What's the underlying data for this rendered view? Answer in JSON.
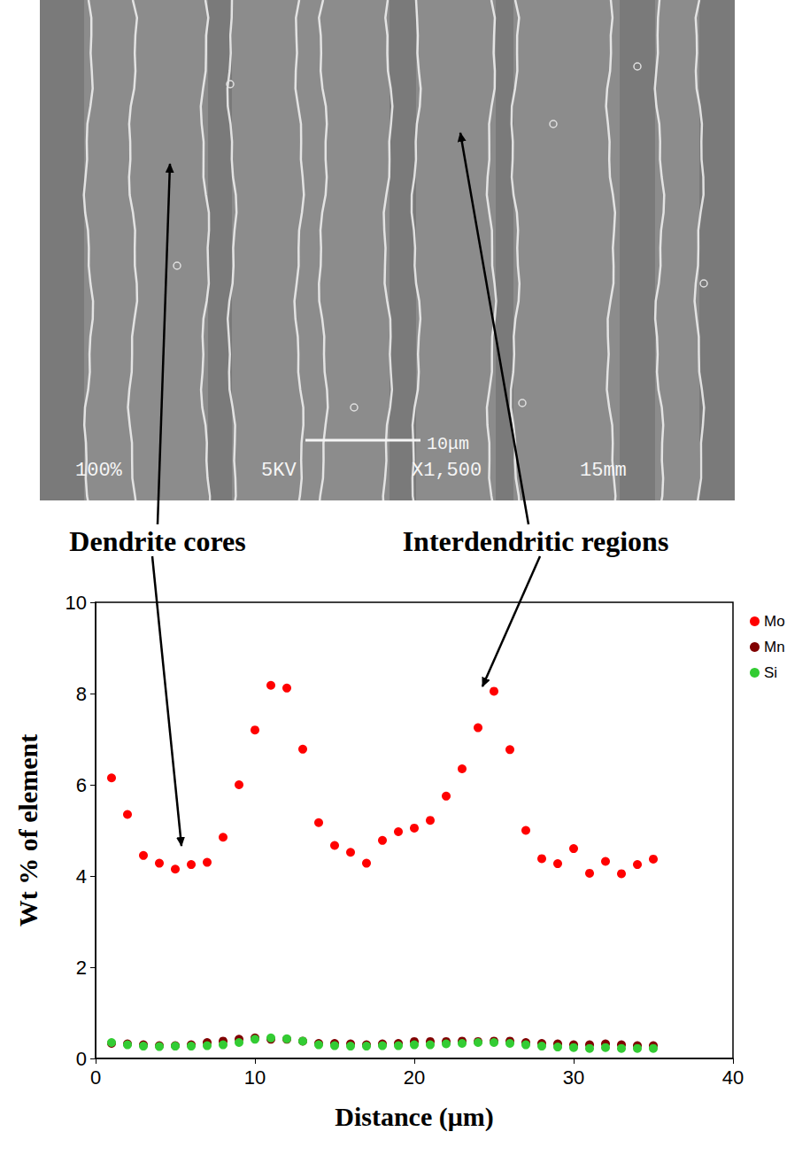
{
  "micrograph": {
    "labels": [
      "100%",
      "5KV",
      "X1,500",
      "15mm"
    ],
    "scale_bar": "10μm"
  },
  "chart_data": {
    "type": "scatter",
    "annotations": [
      "Dendrite cores",
      "Interdendritic regions"
    ],
    "xlabel": "Distance (μm)",
    "ylabel": "Wt % of element",
    "x": [
      1,
      2,
      3,
      4,
      5,
      6,
      7,
      8,
      9,
      10,
      11,
      12,
      13,
      14,
      15,
      16,
      17,
      18,
      19,
      20,
      21,
      22,
      23,
      24,
      25,
      26,
      27,
      28,
      29,
      30,
      31,
      32,
      33,
      34,
      35
    ],
    "series": [
      {
        "name": "Mo",
        "color": "#ff0000",
        "values": [
          6.15,
          5.35,
          4.45,
          4.28,
          4.15,
          4.25,
          4.3,
          4.85,
          6.0,
          7.2,
          8.18,
          8.12,
          6.78,
          5.17,
          4.67,
          4.52,
          4.28,
          4.78,
          4.97,
          5.05,
          5.22,
          5.75,
          6.35,
          7.25,
          8.05,
          6.77,
          5.0,
          4.38,
          4.27,
          4.6,
          4.06,
          4.32,
          4.05,
          4.25,
          4.37
        ]
      },
      {
        "name": "Mn",
        "color": "#800000",
        "values": [
          0.33,
          0.32,
          0.3,
          0.28,
          0.28,
          0.3,
          0.35,
          0.38,
          0.42,
          0.45,
          0.42,
          0.42,
          0.38,
          0.33,
          0.33,
          0.32,
          0.3,
          0.32,
          0.33,
          0.37,
          0.37,
          0.37,
          0.38,
          0.37,
          0.38,
          0.38,
          0.35,
          0.33,
          0.32,
          0.3,
          0.3,
          0.32,
          0.3,
          0.28,
          0.28
        ]
      },
      {
        "name": "Si",
        "color": "#33cc33",
        "values": [
          0.35,
          0.3,
          0.27,
          0.26,
          0.27,
          0.27,
          0.28,
          0.3,
          0.35,
          0.42,
          0.45,
          0.43,
          0.38,
          0.3,
          0.28,
          0.27,
          0.27,
          0.28,
          0.28,
          0.3,
          0.3,
          0.32,
          0.33,
          0.35,
          0.35,
          0.33,
          0.3,
          0.27,
          0.25,
          0.24,
          0.22,
          0.24,
          0.22,
          0.22,
          0.22
        ]
      }
    ],
    "xlim": [
      0,
      40
    ],
    "xticks": [
      0,
      10,
      20,
      30,
      40
    ],
    "ylim": [
      0,
      10
    ],
    "yticks": [
      0,
      2,
      4,
      6,
      8,
      10
    ],
    "grid": false,
    "legend": "right",
    "marker": "circle"
  }
}
